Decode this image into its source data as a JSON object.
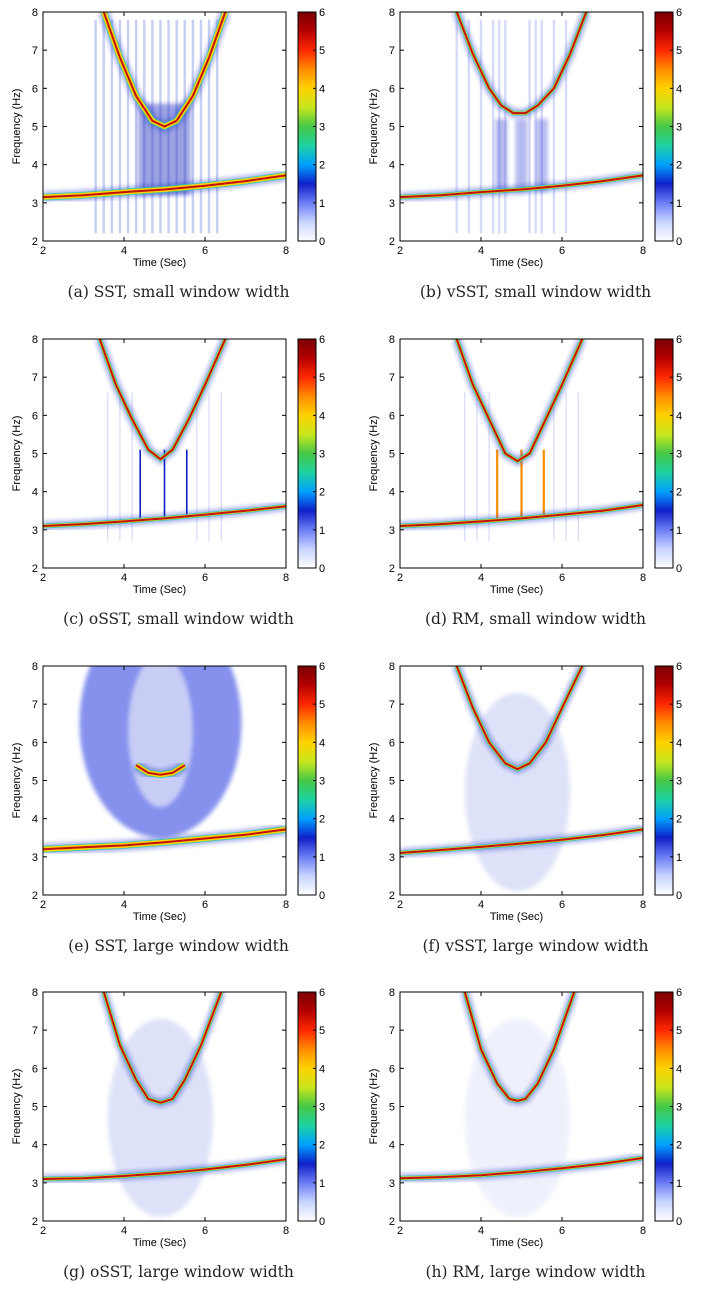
{
  "colorbar": {
    "min": 0,
    "max": 6,
    "ticks": [
      0,
      1,
      2,
      3,
      4,
      5,
      6
    ]
  },
  "chart_data": [
    {
      "id": "a",
      "type": "heatmap",
      "caption": "(a) SST, small window width",
      "xlabel": "Time (Sec)",
      "ylabel": "Frequency (Hz)",
      "xlim": [
        2,
        8
      ],
      "ylim": [
        2,
        8
      ],
      "xticks": [
        2,
        4,
        6,
        8
      ],
      "yticks": [
        2,
        3,
        4,
        5,
        6,
        7,
        8
      ],
      "curves": [
        {
          "name": "",
          "x": [
            2,
            3,
            4,
            5,
            6,
            7,
            8
          ],
          "y": [
            3.15,
            3.2,
            3.28,
            3.35,
            3.45,
            3.57,
            3.72
          ]
        },
        {
          "name": "",
          "x": [
            3.5,
            3.9,
            4.3,
            4.7,
            5.0,
            5.3,
            5.7,
            6.1,
            6.5
          ],
          "y": [
            8,
            6.8,
            5.8,
            5.15,
            5.0,
            5.15,
            5.8,
            6.8,
            8
          ]
        }
      ],
      "style": "sst"
    },
    {
      "id": "b",
      "type": "heatmap",
      "caption": "(b) vSST, small window width",
      "xlabel": "Time (Sec)",
      "ylabel": "Frequency (Hz)",
      "xlim": [
        2,
        8
      ],
      "ylim": [
        2,
        8
      ],
      "xticks": [
        2,
        4,
        6,
        8
      ],
      "yticks": [
        2,
        3,
        4,
        5,
        6,
        7,
        8
      ],
      "curves": [
        {
          "name": "",
          "x": [
            2,
            3,
            4,
            5,
            6,
            7,
            8
          ],
          "y": [
            3.15,
            3.2,
            3.28,
            3.35,
            3.45,
            3.57,
            3.72
          ]
        },
        {
          "name": "",
          "x": [
            3.4,
            3.8,
            4.2,
            4.5,
            4.8,
            5.1,
            5.4,
            5.8,
            6.2,
            6.6
          ],
          "y": [
            8,
            6.9,
            6.0,
            5.55,
            5.35,
            5.35,
            5.55,
            6.0,
            6.9,
            8
          ]
        }
      ],
      "style": "vsst"
    },
    {
      "id": "c",
      "type": "heatmap",
      "caption": "(c) oSST, small window width",
      "xlabel": "Time (Sec)",
      "ylabel": "Frequency (Hz)",
      "xlim": [
        2,
        8
      ],
      "ylim": [
        2,
        8
      ],
      "xticks": [
        2,
        4,
        6,
        8
      ],
      "yticks": [
        2,
        3,
        4,
        5,
        6,
        7,
        8
      ],
      "curves": [
        {
          "name": "",
          "x": [
            2,
            3,
            4,
            5,
            6,
            7,
            8
          ],
          "y": [
            3.1,
            3.15,
            3.22,
            3.3,
            3.4,
            3.5,
            3.62
          ]
        },
        {
          "name": "",
          "x": [
            3.4,
            3.8,
            4.2,
            4.6,
            4.9,
            5.2,
            5.6,
            6.0,
            6.5
          ],
          "y": [
            8,
            6.8,
            5.9,
            5.1,
            4.85,
            5.1,
            5.9,
            6.8,
            8
          ]
        }
      ],
      "style": "osst"
    },
    {
      "id": "d",
      "type": "heatmap",
      "caption": "(d) RM, small window width",
      "xlabel": "Time (Sec)",
      "ylabel": "Frequency (Hz)",
      "xlim": [
        2,
        8
      ],
      "ylim": [
        2,
        8
      ],
      "xticks": [
        2,
        4,
        6,
        8
      ],
      "yticks": [
        2,
        3,
        4,
        5,
        6,
        7,
        8
      ],
      "curves": [
        {
          "name": "",
          "x": [
            2,
            3,
            4,
            5,
            6,
            7,
            8
          ],
          "y": [
            3.1,
            3.15,
            3.22,
            3.3,
            3.4,
            3.5,
            3.65
          ]
        },
        {
          "name": "",
          "x": [
            3.4,
            3.8,
            4.2,
            4.6,
            4.9,
            5.2,
            5.6,
            6.0,
            6.5
          ],
          "y": [
            8,
            6.8,
            5.9,
            5.0,
            4.8,
            5.0,
            5.9,
            6.8,
            8
          ]
        }
      ],
      "style": "rm"
    },
    {
      "id": "e",
      "type": "heatmap",
      "caption": "(e) SST, large window width",
      "xlabel": "Time (Sec)",
      "ylabel": "Frequency (Hz)",
      "xlim": [
        2,
        8
      ],
      "ylim": [
        2,
        8
      ],
      "xticks": [
        2,
        4,
        6,
        8
      ],
      "yticks": [
        2,
        3,
        4,
        5,
        6,
        7,
        8
      ],
      "curves": [
        {
          "name": "",
          "x": [
            2,
            3,
            4,
            5,
            6,
            7,
            8
          ],
          "y": [
            3.2,
            3.25,
            3.3,
            3.38,
            3.48,
            3.58,
            3.72
          ]
        },
        {
          "name": "",
          "x": [
            4.3,
            4.6,
            4.9,
            5.2,
            5.5
          ],
          "y": [
            5.4,
            5.2,
            5.15,
            5.2,
            5.4
          ]
        }
      ],
      "style": "sst-large"
    },
    {
      "id": "f",
      "type": "heatmap",
      "caption": "(f) vSST, large window width",
      "xlabel": "Time (Sec)",
      "ylabel": "Frequency (Hz)",
      "xlim": [
        2,
        8
      ],
      "ylim": [
        2,
        8
      ],
      "xticks": [
        2,
        4,
        6,
        8
      ],
      "yticks": [
        2,
        3,
        4,
        5,
        6,
        7,
        8
      ],
      "curves": [
        {
          "name": "",
          "x": [
            2,
            3,
            4,
            5,
            6,
            7,
            8
          ],
          "y": [
            3.1,
            3.18,
            3.26,
            3.35,
            3.45,
            3.57,
            3.72
          ]
        },
        {
          "name": "",
          "x": [
            3.4,
            3.8,
            4.2,
            4.6,
            4.9,
            5.2,
            5.6,
            6.0,
            6.5
          ],
          "y": [
            8,
            6.9,
            6.0,
            5.45,
            5.3,
            5.45,
            6.0,
            6.9,
            8
          ]
        }
      ],
      "style": "vsst-large"
    },
    {
      "id": "g",
      "type": "heatmap",
      "caption": "(g) oSST, large window width",
      "xlabel": "Time (Sec)",
      "ylabel": "Frequency (Hz)",
      "xlim": [
        2,
        8
      ],
      "ylim": [
        2,
        8
      ],
      "xticks": [
        2,
        4,
        6,
        8
      ],
      "yticks": [
        2,
        3,
        4,
        5,
        6,
        7,
        8
      ],
      "curves": [
        {
          "name": "",
          "x": [
            2,
            3,
            4,
            5,
            6,
            7,
            8
          ],
          "y": [
            3.1,
            3.12,
            3.18,
            3.25,
            3.35,
            3.47,
            3.62
          ]
        },
        {
          "name": "",
          "x": [
            3.5,
            3.9,
            4.3,
            4.6,
            4.9,
            5.2,
            5.5,
            5.9,
            6.4
          ],
          "y": [
            8,
            6.6,
            5.7,
            5.2,
            5.1,
            5.2,
            5.7,
            6.6,
            8
          ]
        }
      ],
      "style": "osst-large"
    },
    {
      "id": "h",
      "type": "heatmap",
      "caption": "(h) RM, large window width",
      "xlabel": "Time (Sec)",
      "ylabel": "Frequency (Hz)",
      "xlim": [
        2,
        8
      ],
      "ylim": [
        2,
        8
      ],
      "xticks": [
        2,
        4,
        6,
        8
      ],
      "yticks": [
        2,
        3,
        4,
        5,
        6,
        7,
        8
      ],
      "curves": [
        {
          "name": "",
          "x": [
            2,
            3,
            4,
            5,
            6,
            7,
            8
          ],
          "y": [
            3.12,
            3.15,
            3.2,
            3.28,
            3.38,
            3.5,
            3.65
          ]
        },
        {
          "name": "",
          "x": [
            3.6,
            4.0,
            4.4,
            4.7,
            4.9,
            5.1,
            5.4,
            5.8,
            6.3
          ],
          "y": [
            8,
            6.5,
            5.6,
            5.2,
            5.15,
            5.2,
            5.6,
            6.5,
            8
          ]
        }
      ],
      "style": "rm-large"
    }
  ]
}
